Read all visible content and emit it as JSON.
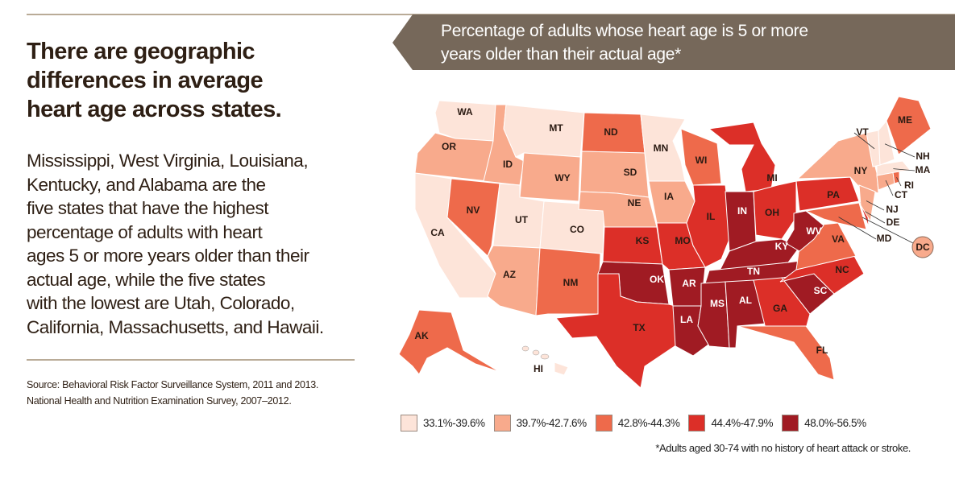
{
  "left": {
    "title_lines": [
      "There are geographic",
      "differences in average",
      "heart age across states."
    ],
    "body_lines": [
      "Mississippi, West Virginia, Louisiana,",
      "Kentucky, and Alabama are the",
      "five states that have the highest",
      "percentage of adults with heart",
      "ages 5 or more years older than their",
      "actual age, while the five states",
      "with the lowest are Utah, Colorado,",
      "California, Massachusetts, and Hawaii."
    ],
    "source_lines": [
      "Source: Behavioral Risk Factor Surveillance System, 2011 and 2013.",
      "National Health and Nutrition Examination Survey, 2007–2012."
    ]
  },
  "map": {
    "title_lines": [
      "Percentage of adults whose heart age is 5 or more",
      "years older than their actual age*"
    ],
    "banner_color": "#76685a",
    "legend": [
      {
        "label": "33.1%-39.6%",
        "color": "#fde4d9"
      },
      {
        "label": "39.7%-42.7.6%",
        "color": "#f8aa8c"
      },
      {
        "label": "42.8%-44.3%",
        "color": "#ee6a4b"
      },
      {
        "label": "44.4%-47.9%",
        "color": "#dc2f28"
      },
      {
        "label": "48.0%-56.5%",
        "color": "#a01b23"
      }
    ],
    "footnote": "*Adults aged 30-74 with no history of heart attack or stroke.",
    "states": {
      "WA": 1,
      "OR": 2,
      "CA": 1,
      "ID": 2,
      "NV": 3,
      "MT": 1,
      "WY": 2,
      "UT": 1,
      "CO": 1,
      "AZ": 2,
      "NM": 3,
      "ND": 3,
      "SD": 2,
      "NE": 2,
      "KS": 4,
      "OK": 5,
      "TX": 4,
      "MN": 1,
      "IA": 2,
      "MO": 4,
      "AR": 5,
      "LA": 5,
      "WI": 3,
      "IL": 4,
      "MI": 4,
      "IN": 5,
      "OH": 4,
      "KY": 5,
      "TN": 5,
      "MS": 5,
      "AL": 5,
      "GA": 4,
      "FL": 3,
      "SC": 5,
      "NC": 4,
      "VA": 3,
      "WV": 5,
      "PA": 4,
      "NY": 2,
      "MD": 3,
      "DE": 4,
      "NJ": 2,
      "CT": 2,
      "RI": 3,
      "MA": 1,
      "VT": 1,
      "NH": 1,
      "ME": 3,
      "AK": 3,
      "HI": 1,
      "DC": 2
    }
  }
}
